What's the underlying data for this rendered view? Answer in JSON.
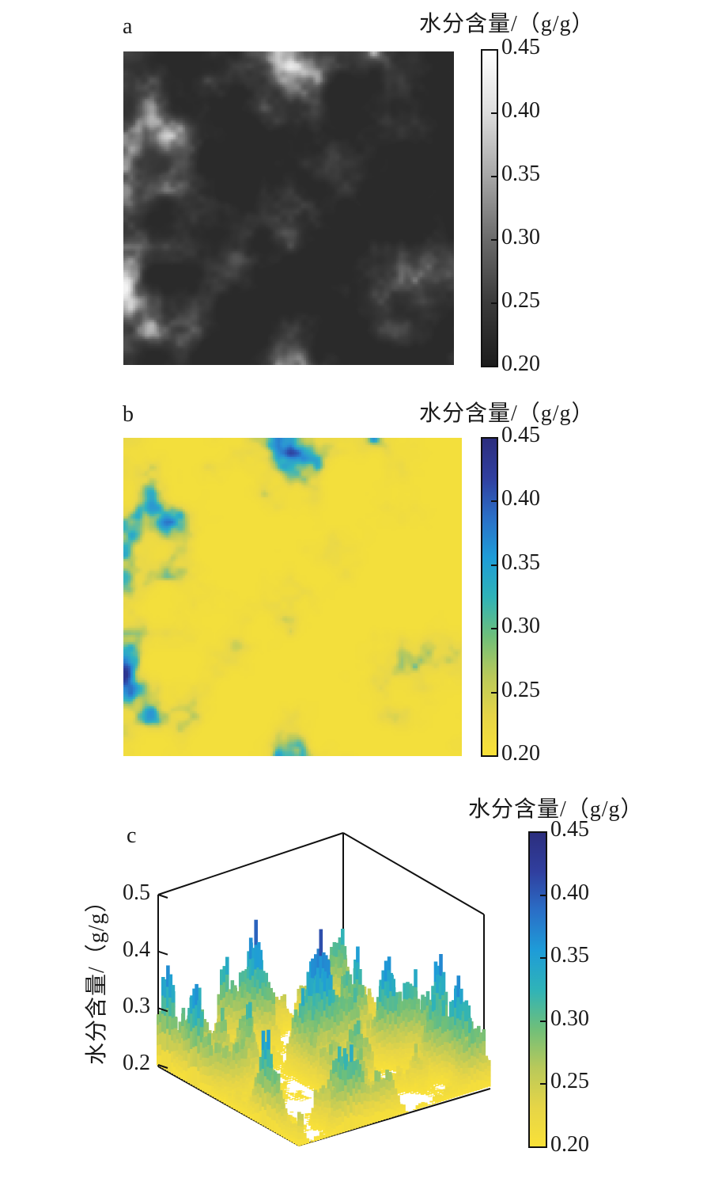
{
  "chart_data": [
    {
      "panel": "a",
      "type": "heatmap",
      "colormap": "grayscale (dark = low, white = high)",
      "colorbar": {
        "title": "水分含量/（g/g）",
        "ticks": [
          "0.45",
          "0.40",
          "0.35",
          "0.30",
          "0.25",
          "0.20"
        ],
        "range": [
          0.2,
          0.45
        ]
      }
    },
    {
      "panel": "b",
      "type": "heatmap",
      "colormap": "parula (yellow = low, dark blue = high)",
      "colorbar": {
        "title": "水分含量/（g/g）",
        "ticks": [
          "0.45",
          "0.40",
          "0.35",
          "0.30",
          "0.25",
          "0.20"
        ],
        "range": [
          0.2,
          0.45
        ]
      }
    },
    {
      "panel": "c",
      "type": "surface",
      "colormap": "parula (yellow = low, dark blue = high)",
      "zlabel": "水分含量/（g/g）",
      "zticks": [
        "0.5",
        "0.4",
        "0.3",
        "0.2"
      ],
      "zlim": [
        0.2,
        0.5
      ],
      "colorbar": {
        "title": "水分含量/（g/g）",
        "ticks": [
          "0.45",
          "0.40",
          "0.35",
          "0.30",
          "0.25",
          "0.20"
        ],
        "range": [
          0.2,
          0.45
        ]
      }
    }
  ],
  "colors": {
    "parula": [
      "#f9e138",
      "#e6d547",
      "#b9c95a",
      "#6fbf7a",
      "#2fb3b8",
      "#1e9cd8",
      "#2a6fc7",
      "#303f9f",
      "#2c2e7e"
    ],
    "gray": [
      "#1e1e1e",
      "#3a3a3a",
      "#5e5e5e",
      "#8e8e8e",
      "#c4c4c4",
      "#f4f4f4"
    ]
  }
}
